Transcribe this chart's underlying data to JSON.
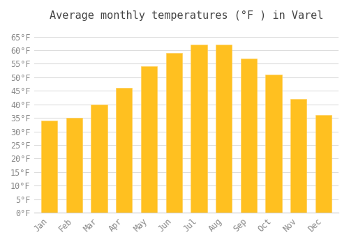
{
  "title": "Average monthly temperatures (°F ) in Varel",
  "months": [
    "Jan",
    "Feb",
    "Mar",
    "Apr",
    "May",
    "Jun",
    "Jul",
    "Aug",
    "Sep",
    "Oct",
    "Nov",
    "Dec"
  ],
  "values": [
    34,
    35,
    40,
    46,
    54,
    59,
    62,
    62,
    57,
    51,
    42,
    36
  ],
  "bar_color_face": "#FFC020",
  "bar_color_edge": "#FFD060",
  "ylim": [
    0,
    68
  ],
  "yticks": [
    0,
    5,
    10,
    15,
    20,
    25,
    30,
    35,
    40,
    45,
    50,
    55,
    60,
    65
  ],
  "ylabel_suffix": "°F",
  "background_color": "#ffffff",
  "grid_color": "#dddddd",
  "title_fontsize": 11,
  "tick_fontsize": 8.5,
  "font_family": "monospace"
}
